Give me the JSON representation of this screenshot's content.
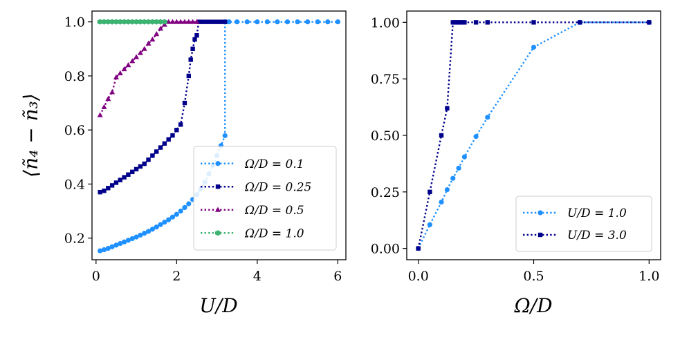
{
  "chart_data": [
    {
      "type": "line",
      "xlabel": "U/D",
      "ylabel": "⟨ñ₄ − ñ₃⟩",
      "xlim": [
        -0.1,
        6.2
      ],
      "ylim": [
        0.12,
        1.04
      ],
      "xticks": [
        0,
        2,
        4,
        6
      ],
      "xtick_labels": [
        "0",
        "2",
        "4",
        "6"
      ],
      "yticks": [
        0.2,
        0.4,
        0.6,
        0.8,
        1.0
      ],
      "ytick_labels": [
        "0.2",
        "0.4",
        "0.6",
        "0.8",
        "1.0"
      ],
      "legend_position": "lower-right",
      "series": [
        {
          "name": "Ω/D = 0.1",
          "color": "#1e90ff",
          "marker": "circle",
          "x": [
            0.1,
            0.2,
            0.3,
            0.4,
            0.5,
            0.6,
            0.7,
            0.8,
            0.9,
            1.0,
            1.1,
            1.2,
            1.3,
            1.4,
            1.5,
            1.6,
            1.7,
            1.8,
            1.9,
            2.0,
            2.1,
            2.2,
            2.3,
            2.4,
            2.5,
            2.6,
            2.7,
            2.8,
            2.9,
            3.0,
            3.1,
            3.2,
            3.2,
            3.3,
            3.5,
            3.75,
            4.0,
            4.25,
            4.5,
            4.75,
            5.0,
            5.25,
            5.5,
            5.75,
            6.0
          ],
          "y": [
            0.153,
            0.157,
            0.162,
            0.168,
            0.174,
            0.18,
            0.186,
            0.192,
            0.198,
            0.204,
            0.211,
            0.218,
            0.225,
            0.233,
            0.241,
            0.25,
            0.259,
            0.268,
            0.278,
            0.288,
            0.3,
            0.313,
            0.327,
            0.343,
            0.361,
            0.382,
            0.407,
            0.437,
            0.47,
            0.505,
            0.542,
            0.579,
            1.0,
            1.0,
            1.0,
            1.0,
            1.0,
            1.0,
            1.0,
            1.0,
            1.0,
            1.0,
            1.0,
            1.0,
            1.0
          ]
        },
        {
          "name": "Ω/D = 0.25",
          "color": "#00008b",
          "marker": "square",
          "x": [
            0.1,
            0.2,
            0.3,
            0.4,
            0.5,
            0.6,
            0.7,
            0.8,
            0.9,
            1.0,
            1.1,
            1.2,
            1.3,
            1.4,
            1.5,
            1.6,
            1.7,
            1.8,
            1.9,
            2.0,
            2.1,
            2.2,
            2.3,
            2.35,
            2.4,
            2.45,
            2.5,
            2.55,
            2.6,
            2.7,
            2.8,
            2.9,
            3.0,
            3.1,
            3.2
          ],
          "y": [
            0.37,
            0.375,
            0.385,
            0.395,
            0.405,
            0.415,
            0.425,
            0.435,
            0.445,
            0.455,
            0.465,
            0.475,
            0.49,
            0.505,
            0.52,
            0.535,
            0.55,
            0.565,
            0.58,
            0.6,
            0.62,
            0.7,
            0.8,
            0.86,
            0.9,
            0.935,
            0.95,
            1.0,
            1.0,
            1.0,
            1.0,
            1.0,
            1.0,
            1.0,
            1.0
          ]
        },
        {
          "name": "Ω/D = 0.5",
          "color": "#800080",
          "marker": "triangle",
          "x": [
            0.1,
            0.2,
            0.3,
            0.4,
            0.5,
            0.6,
            0.7,
            0.8,
            0.9,
            1.0,
            1.1,
            1.2,
            1.3,
            1.4,
            1.5,
            1.6,
            1.7,
            1.8,
            1.9,
            2.0,
            2.1,
            2.2,
            2.3,
            2.4,
            2.5
          ],
          "y": [
            0.655,
            0.685,
            0.715,
            0.74,
            0.795,
            0.81,
            0.825,
            0.84,
            0.855,
            0.87,
            0.885,
            0.9,
            0.92,
            0.935,
            0.955,
            0.975,
            0.99,
            1.0,
            1.0,
            1.0,
            1.0,
            1.0,
            1.0,
            1.0,
            1.0
          ]
        },
        {
          "name": "Ω/D = 1.0",
          "color": "#3cb371",
          "marker": "diamond",
          "x": [
            0.1,
            0.2,
            0.3,
            0.4,
            0.5,
            0.6,
            0.7,
            0.8,
            0.9,
            1.0,
            1.1,
            1.2,
            1.3,
            1.4,
            1.5,
            1.6,
            1.7
          ],
          "y": [
            1.0,
            1.0,
            1.0,
            1.0,
            1.0,
            1.0,
            1.0,
            1.0,
            1.0,
            1.0,
            1.0,
            1.0,
            1.0,
            1.0,
            1.0,
            1.0,
            1.0
          ]
        }
      ]
    },
    {
      "type": "line",
      "xlabel": "Ω/D",
      "ylabel": "",
      "xlim": [
        -0.05,
        1.05
      ],
      "ylim": [
        -0.05,
        1.05
      ],
      "xticks": [
        0.0,
        0.5,
        1.0
      ],
      "xtick_labels": [
        "0.0",
        "0.5",
        "1.0"
      ],
      "yticks": [
        0.0,
        0.25,
        0.5,
        0.75,
        1.0
      ],
      "ytick_labels": [
        "0.00",
        "0.25",
        "0.50",
        "0.75",
        "1.00"
      ],
      "legend_position": "lower-right",
      "series": [
        {
          "name": "U/D = 1.0",
          "color": "#1e90ff",
          "marker": "circle",
          "x": [
            0.0,
            0.05,
            0.1,
            0.125,
            0.15,
            0.175,
            0.2,
            0.25,
            0.3,
            0.5,
            0.7,
            1.0
          ],
          "y": [
            0.0,
            0.105,
            0.205,
            0.26,
            0.31,
            0.355,
            0.405,
            0.495,
            0.58,
            0.89,
            1.0,
            1.0
          ]
        },
        {
          "name": "U/D = 3.0",
          "color": "#00008b",
          "marker": "square",
          "x": [
            0.0,
            0.05,
            0.1,
            0.125,
            0.15,
            0.16,
            0.17,
            0.18,
            0.19,
            0.2,
            0.25,
            0.3,
            0.5,
            0.7,
            1.0
          ],
          "y": [
            0.0,
            0.25,
            0.5,
            0.62,
            1.0,
            1.0,
            1.0,
            1.0,
            1.0,
            1.0,
            1.0,
            1.0,
            1.0,
            1.0,
            1.0
          ]
        }
      ]
    }
  ]
}
